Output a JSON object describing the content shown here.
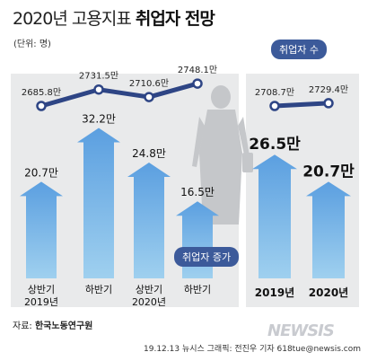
{
  "title": {
    "main": "2020년 고용지표",
    "emph": "취업자 전망"
  },
  "unit_label": "(단위: 명)",
  "badges": {
    "total": "취업자 수",
    "increase": "취업자 증가"
  },
  "source": {
    "prefix": "자료:",
    "org": "한국노동연구원"
  },
  "credit": "19.12.13  뉴시스 그래픽: 전진우 기자 618tue@newsis.com",
  "watermark": "NEWSIS",
  "colors": {
    "arrow_top": "#5b9fe0",
    "arrow_bottom": "#9fd0ef",
    "line": "#2e4585",
    "panel": "#e9eaeb",
    "badge": "#3c5a9a"
  },
  "chart_data": [
    {
      "type": "bar",
      "name": "취업자 증가",
      "categories": [
        [
          "상반기",
          "2019년"
        ],
        [
          "하반기"
        ],
        [
          "상반기",
          "2020년"
        ],
        [
          "하반기"
        ]
      ],
      "values": [
        20.7,
        32.2,
        24.8,
        16.5
      ],
      "labels": [
        "20.7만",
        "32.2만",
        "24.8만",
        "16.5만"
      ],
      "unit": "만"
    },
    {
      "type": "line",
      "name": "취업자 수",
      "categories": [
        [
          "상반기",
          "2019년"
        ],
        [
          "하반기"
        ],
        [
          "상반기",
          "2020년"
        ],
        [
          "하반기"
        ]
      ],
      "values": [
        2685.8,
        2731.5,
        2710.6,
        2748.1
      ],
      "labels": [
        "2685.8만",
        "2731.5만",
        "2710.6만",
        "2748.1만"
      ],
      "unit": "만"
    },
    {
      "type": "bar",
      "name": "취업자 증가",
      "categories": [
        "2019년",
        "2020년"
      ],
      "values": [
        26.5,
        20.7
      ],
      "labels": [
        "26.5만",
        "20.7만"
      ],
      "unit": "만"
    },
    {
      "type": "line",
      "name": "취업자 수",
      "categories": [
        "2019년",
        "2020년"
      ],
      "values": [
        2708.7,
        2729.4
      ],
      "labels": [
        "2708.7만",
        "2729.4만"
      ],
      "unit": "만"
    }
  ]
}
